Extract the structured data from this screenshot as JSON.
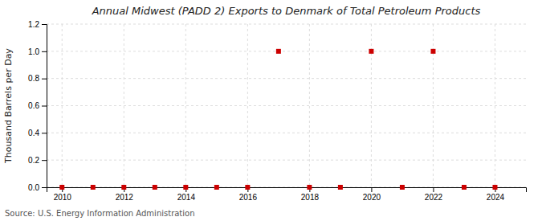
{
  "chart_data": {
    "type": "scatter",
    "title": "Annual Midwest (PADD 2) Exports to Denmark of Total Petroleum Products",
    "ylabel": "Thousand Barrels per Day",
    "source": "Source: U.S. Energy Information Administration",
    "x": [
      2010,
      2011,
      2012,
      2013,
      2014,
      2015,
      2016,
      2017,
      2018,
      2019,
      2020,
      2021,
      2022,
      2023,
      2024
    ],
    "values": [
      0,
      0,
      0,
      0,
      0,
      0,
      0,
      1.0,
      0,
      0,
      1.0,
      0,
      1.0,
      0,
      0
    ],
    "color": "#cc0000",
    "marker": "square",
    "xlim": [
      2009.5,
      2025.0
    ],
    "ylim": [
      0,
      1.2
    ],
    "xticks": [
      2010,
      2012,
      2014,
      2016,
      2018,
      2020,
      2022,
      2024
    ],
    "yticks": [
      {
        "value": 0.0,
        "label": "0.0"
      },
      0.2,
      0.4,
      0.6,
      0.8,
      {
        "value": 1.0,
        "label": "1.0"
      },
      1.2
    ],
    "grid": true
  }
}
